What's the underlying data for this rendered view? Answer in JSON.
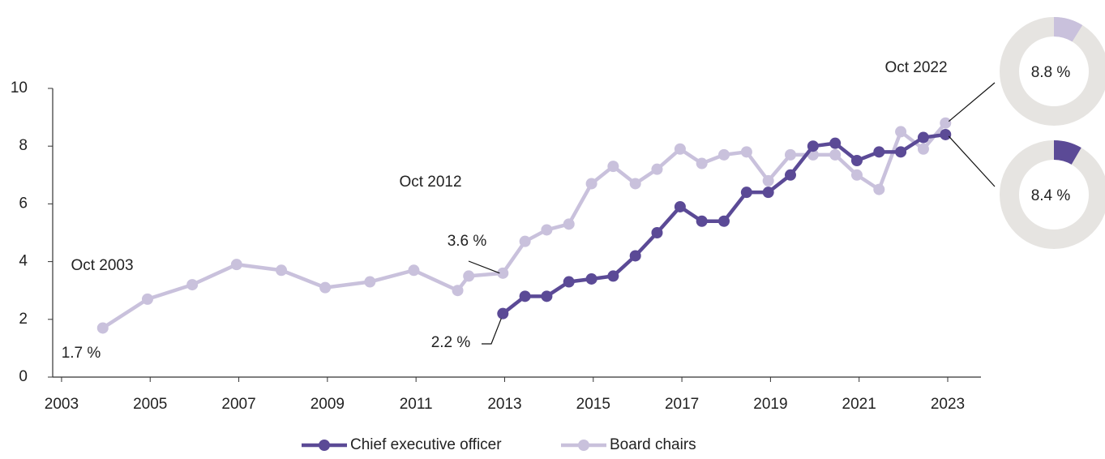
{
  "chart_data": {
    "type": "line",
    "x": [
      2003.93,
      2004.94,
      2005.95,
      2006.95,
      2007.96,
      2008.95,
      2009.96,
      2010.95,
      2011.94,
      2012.19,
      2012.96,
      2013.46,
      2013.95,
      2014.45,
      2014.96,
      2015.45,
      2015.95,
      2016.44,
      2016.96,
      2017.45,
      2017.95,
      2018.46,
      2018.95,
      2019.45,
      2019.96,
      2020.46,
      2020.95,
      2021.45,
      2021.94,
      2022.45,
      2022.95
    ],
    "series": [
      {
        "name": "Chief executive officer",
        "color": "#5b4a96",
        "values": [
          null,
          null,
          null,
          null,
          null,
          null,
          null,
          null,
          null,
          null,
          2.2,
          2.8,
          2.8,
          3.3,
          3.4,
          3.5,
          4.2,
          5.0,
          5.9,
          5.4,
          5.4,
          6.4,
          6.4,
          7.0,
          8.0,
          8.1,
          7.5,
          7.8,
          7.8,
          8.3,
          8.4
        ],
        "value_labels": [
          null,
          null,
          null,
          null,
          null,
          null,
          null,
          null,
          null,
          null,
          "2.2 %",
          null,
          null,
          null,
          null,
          null,
          null,
          null,
          null,
          null,
          null,
          null,
          null,
          null,
          null,
          null,
          null,
          null,
          null,
          null,
          "8.4 %"
        ]
      },
      {
        "name": "Board chairs",
        "color": "#c9c1dc",
        "values": [
          1.7,
          2.7,
          3.2,
          3.9,
          3.7,
          3.1,
          3.3,
          3.7,
          3.0,
          3.5,
          3.6,
          4.7,
          5.1,
          5.3,
          6.7,
          7.3,
          6.7,
          7.2,
          7.9,
          7.4,
          7.7,
          7.8,
          6.8,
          7.7,
          7.7,
          7.7,
          7.0,
          6.5,
          8.5,
          7.9,
          8.8
        ],
        "value_labels": [
          "1.7 %",
          null,
          null,
          null,
          null,
          null,
          null,
          null,
          null,
          null,
          "3.6 %",
          null,
          null,
          null,
          null,
          null,
          null,
          null,
          null,
          null,
          null,
          null,
          null,
          null,
          null,
          null,
          null,
          null,
          null,
          null,
          "8.8 %"
        ]
      }
    ],
    "annotations": [
      "Oct 2003",
      "Oct 2012",
      "Oct 2022"
    ],
    "xlim": [
      2002.8,
      2023.75
    ],
    "xticks": [
      2003,
      2005,
      2007,
      2009,
      2011,
      2013,
      2015,
      2017,
      2019,
      2021,
      2023
    ],
    "ylim": [
      0,
      10
    ],
    "yticks": [
      0,
      2,
      4,
      6,
      8,
      10
    ],
    "donut_track_color": "#e6e4e1"
  }
}
